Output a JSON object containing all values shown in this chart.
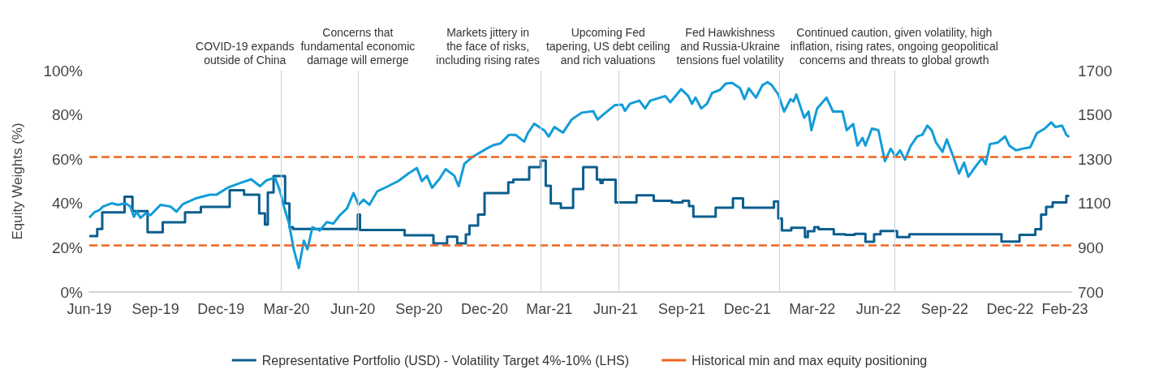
{
  "chart_data": {
    "type": "line",
    "ylabel": "Equity Weights (%)",
    "legend": "bottom",
    "xlim": [
      "2019-06-01",
      "2023-02-24"
    ],
    "xticks": [
      {
        "value": "2019-06-01",
        "label": "Jun-19"
      },
      {
        "value": "2019-09-01",
        "label": "Sep-19"
      },
      {
        "value": "2019-12-01",
        "label": "Dec-19"
      },
      {
        "value": "2020-03-01",
        "label": "Mar-20"
      },
      {
        "value": "2020-06-01",
        "label": "Jun-20"
      },
      {
        "value": "2020-09-01",
        "label": "Sep-20"
      },
      {
        "value": "2020-12-01",
        "label": "Dec-20"
      },
      {
        "value": "2021-03-01",
        "label": "Mar-21"
      },
      {
        "value": "2021-06-01",
        "label": "Jun-21"
      },
      {
        "value": "2021-09-01",
        "label": "Sep-21"
      },
      {
        "value": "2021-12-01",
        "label": "Dec-21"
      },
      {
        "value": "2022-03-01",
        "label": "Mar-22"
      },
      {
        "value": "2022-06-01",
        "label": "Jun-22"
      },
      {
        "value": "2022-09-01",
        "label": "Sep-22"
      },
      {
        "value": "2022-12-01",
        "label": "Dec-22"
      },
      {
        "value": "2023-02-15",
        "label": "Feb-23"
      }
    ],
    "ylim": [
      0,
      100
    ],
    "yticks": [
      {
        "value": 0,
        "label": "0%"
      },
      {
        "value": 20,
        "label": "20%"
      },
      {
        "value": 40,
        "label": "40%"
      },
      {
        "value": 60,
        "label": "60%"
      },
      {
        "value": 80,
        "label": "80%"
      },
      {
        "value": 100,
        "label": "100%"
      }
    ],
    "y2lim": [
      700,
      1700
    ],
    "y2ticks": [
      700,
      900,
      1100,
      1300,
      1500,
      1700
    ],
    "series": [
      {
        "type": "step",
        "name": "Representative Portfolio (USD) - Volatility Target 4%-10% (LHS)",
        "color": "#0b5e8e",
        "x": [
          "2019-06-01",
          "2019-06-12",
          "2019-06-19",
          "2019-07-20",
          "2019-07-31",
          "2019-08-21",
          "2019-09-11",
          "2019-10-12",
          "2019-11-03",
          "2019-12-13",
          "2020-01-02",
          "2020-01-23",
          "2020-01-31",
          "2020-02-04",
          "2020-02-12",
          "2020-02-28",
          "2020-03-05",
          "2020-03-10",
          "2020-06-08",
          "2020-06-11",
          "2020-08-12",
          "2020-09-21",
          "2020-10-10",
          "2020-10-24",
          "2020-11-05",
          "2020-11-10",
          "2020-11-22",
          "2020-12-01",
          "2021-01-03",
          "2021-01-10",
          "2021-02-01",
          "2021-02-17",
          "2021-02-24",
          "2021-03-03",
          "2021-03-17",
          "2021-04-03",
          "2021-04-17",
          "2021-05-06",
          "2021-05-11",
          "2021-05-14",
          "2021-06-01",
          "2021-06-30",
          "2021-07-24",
          "2021-08-18",
          "2021-09-02",
          "2021-09-11",
          "2021-09-17",
          "2021-10-18",
          "2021-11-11",
          "2021-11-25",
          "2022-01-07",
          "2022-01-13",
          "2022-01-18",
          "2022-01-31",
          "2022-02-19",
          "2022-02-23",
          "2022-03-04",
          "2022-03-10",
          "2022-03-31",
          "2022-04-16",
          "2022-04-29",
          "2022-05-14",
          "2022-05-26",
          "2022-06-04",
          "2022-06-27",
          "2022-07-14",
          "2022-11-19",
          "2022-12-14",
          "2023-01-05",
          "2023-01-13",
          "2023-01-20",
          "2023-01-29",
          "2023-02-17",
          "2023-02-21"
        ],
        "values": [
          25.3,
          28.5,
          36,
          43,
          36.5,
          27,
          31.5,
          36,
          38.5,
          46,
          44,
          35.5,
          30.5,
          45,
          52.4,
          40,
          29.3,
          28.5,
          35,
          28,
          25.6,
          22,
          25,
          22,
          26,
          30,
          35,
          44.7,
          49.5,
          50.8,
          56.4,
          59.3,
          48,
          40,
          38,
          46.5,
          56.4,
          50.8,
          49.3,
          50.7,
          40.5,
          43.7,
          41.2,
          40.5,
          41.2,
          38.8,
          34.1,
          38.1,
          42.3,
          38.1,
          40.9,
          33.2,
          27.8,
          29,
          24.8,
          27.5,
          29.3,
          28.4,
          26.1,
          25.8,
          26.3,
          22.7,
          26.1,
          27.6,
          24.8,
          26.1,
          22.8,
          25.8,
          28.4,
          35,
          38.5,
          40.5,
          43.4,
          43.4
        ]
      },
      {
        "axis": "y2",
        "color": "#139cd8",
        "x": [
          "2019-06-01",
          "2019-06-08",
          "2019-06-15",
          "2019-06-20",
          "2019-07-02",
          "2019-07-11",
          "2019-07-21",
          "2019-07-28",
          "2019-08-02",
          "2019-08-06",
          "2019-08-11",
          "2019-08-18",
          "2019-08-25",
          "2019-09-08",
          "2019-09-22",
          "2019-09-30",
          "2019-10-09",
          "2019-10-28",
          "2019-11-16",
          "2019-11-25",
          "2019-12-10",
          "2019-12-29",
          "2020-01-12",
          "2020-01-24",
          "2020-02-02",
          "2020-02-14",
          "2020-02-21",
          "2020-02-27",
          "2020-03-04",
          "2020-03-11",
          "2020-03-18",
          "2020-03-25",
          "2020-03-30",
          "2020-04-06",
          "2020-04-16",
          "2020-04-26",
          "2020-05-05",
          "2020-05-14",
          "2020-05-24",
          "2020-06-02",
          "2020-06-09",
          "2020-06-16",
          "2020-06-24",
          "2020-07-05",
          "2020-07-20",
          "2020-08-03",
          "2020-08-17",
          "2020-08-29",
          "2020-09-05",
          "2020-09-12",
          "2020-09-19",
          "2020-09-29",
          "2020-10-08",
          "2020-10-20",
          "2020-10-26",
          "2020-11-03",
          "2020-11-15",
          "2020-12-04",
          "2020-12-13",
          "2020-12-23",
          "2021-01-04",
          "2021-01-13",
          "2021-01-25",
          "2021-01-30",
          "2021-02-08",
          "2021-02-22",
          "2021-02-28",
          "2021-03-08",
          "2021-03-20",
          "2021-04-01",
          "2021-04-15",
          "2021-05-01",
          "2021-05-07",
          "2021-05-15",
          "2021-05-31",
          "2021-06-10",
          "2021-06-14",
          "2021-06-21",
          "2021-07-04",
          "2021-07-12",
          "2021-07-19",
          "2021-08-09",
          "2021-08-16",
          "2021-08-31",
          "2021-09-10",
          "2021-09-15",
          "2021-09-20",
          "2021-09-28",
          "2021-10-06",
          "2021-10-13",
          "2021-10-24",
          "2021-11-01",
          "2021-11-10",
          "2021-11-21",
          "2021-11-27",
          "2021-12-03",
          "2021-12-13",
          "2021-12-22",
          "2021-12-29",
          "2022-01-04",
          "2022-01-13",
          "2022-01-21",
          "2022-01-30",
          "2022-02-03",
          "2022-02-07",
          "2022-02-18",
          "2022-02-24",
          "2022-02-28",
          "2022-03-08",
          "2022-03-21",
          "2022-03-30",
          "2022-04-12",
          "2022-04-18",
          "2022-04-27",
          "2022-05-03",
          "2022-05-10",
          "2022-05-14",
          "2022-05-23",
          "2022-06-01",
          "2022-06-10",
          "2022-06-18",
          "2022-06-25",
          "2022-07-01",
          "2022-07-08",
          "2022-07-16",
          "2022-07-25",
          "2022-08-01",
          "2022-08-08",
          "2022-08-14",
          "2022-08-20",
          "2022-08-29",
          "2022-09-04",
          "2022-09-13",
          "2022-09-21",
          "2022-09-28",
          "2022-10-04",
          "2022-10-13",
          "2022-10-23",
          "2022-10-28",
          "2022-11-03",
          "2022-11-14",
          "2022-11-24",
          "2022-11-30",
          "2022-12-09",
          "2022-12-18",
          "2022-12-29",
          "2023-01-07",
          "2023-01-18",
          "2023-01-27",
          "2023-02-02",
          "2023-02-11",
          "2023-02-17",
          "2023-02-21"
        ],
        "values": [
          1036,
          1060,
          1070,
          1086,
          1101,
          1094,
          1101,
          1086,
          1040,
          1063,
          1035,
          1055,
          1047,
          1094,
          1086,
          1063,
          1097,
          1124,
          1140,
          1140,
          1171,
          1194,
          1209,
          1178,
          1204,
          1217,
          1155,
          1078,
          1016,
          893,
          808,
          932,
          893,
          993,
          978,
          1016,
          1009,
          1047,
          1078,
          1147,
          1094,
          1117,
          1094,
          1155,
          1178,
          1201,
          1235,
          1260,
          1201,
          1225,
          1171,
          1209,
          1255,
          1225,
          1178,
          1279,
          1312,
          1348,
          1363,
          1371,
          1410,
          1410,
          1379,
          1417,
          1460,
          1430,
          1402,
          1445,
          1420,
          1479,
          1510,
          1517,
          1479,
          1502,
          1544,
          1546,
          1518,
          1550,
          1564,
          1529,
          1564,
          1585,
          1557,
          1616,
          1585,
          1550,
          1578,
          1529,
          1550,
          1599,
          1613,
          1641,
          1644,
          1620,
          1571,
          1620,
          1578,
          1634,
          1648,
          1634,
          1592,
          1515,
          1571,
          1560,
          1592,
          1487,
          1515,
          1431,
          1529,
          1578,
          1515,
          1515,
          1431,
          1459,
          1361,
          1396,
          1361,
          1438,
          1431,
          1291,
          1347,
          1312,
          1340,
          1298,
          1361,
          1403,
          1410,
          1452,
          1431,
          1375,
          1333,
          1389,
          1312,
          1235,
          1284,
          1221,
          1263,
          1305,
          1277,
          1368,
          1375,
          1403,
          1361,
          1340,
          1347,
          1354,
          1417,
          1438,
          1466,
          1445,
          1452,
          1410,
          1400
        ]
      }
    ],
    "ref_lines": [
      {
        "axis": "y",
        "value": 61,
        "color": "#f0641e",
        "line_style": "dashed",
        "label": "Historical min and max equity positioning"
      },
      {
        "axis": "y",
        "value": 21,
        "color": "#f0641e",
        "line_style": "dashed"
      },
      {
        "axis": "x",
        "value": "2020-02-22",
        "color": "#d0d5dc",
        "label": "COVID-19 expands\noutside of China"
      },
      {
        "axis": "x",
        "value": "2020-06-08",
        "color": "#d0d5dc",
        "label": "Concerns that\nfundamental economic\ndamage will emerge"
      },
      {
        "axis": "x",
        "value": "2021-02-17",
        "color": "#d0d5dc",
        "label": "Markets jittery in\nthe face of risks,\nincluding rising rates"
      },
      {
        "axis": "x",
        "value": "2021-06-05",
        "color": "#d0d5dc",
        "label": "Upcoming Fed\ntapering, US debt ceiling\nand rich valuations"
      },
      {
        "axis": "x",
        "value": "2022-01-15",
        "color": "#d0d5dc",
        "label": "Fed Hawkishness\nand Russia-Ukraine\ntensions fuel volatility"
      },
      {
        "axis": "x",
        "value": "2022-06-23",
        "color": "#d0d5dc",
        "label": "Continued caution, given volatility, high\ninflation, rising rates, ongoing geopolitical\nconcerns and threats to global growth"
      }
    ]
  }
}
